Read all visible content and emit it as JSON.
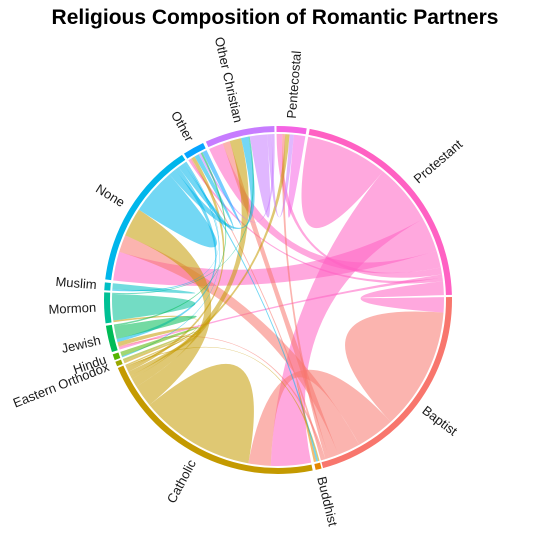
{
  "chart_data": {
    "type": "chord",
    "title": "Religious Composition of Romantic Partners",
    "groups": [
      {
        "name": "Baptist",
        "color": "#F8766D"
      },
      {
        "name": "Buddhist",
        "color": "#E58700"
      },
      {
        "name": "Catholic",
        "color": "#C49A00"
      },
      {
        "name": "Eastern Orthodox",
        "color": "#99A800"
      },
      {
        "name": "Hindu",
        "color": "#53B400"
      },
      {
        "name": "Jewish",
        "color": "#00BC56"
      },
      {
        "name": "Mormon",
        "color": "#00C094"
      },
      {
        "name": "Muslim",
        "color": "#00BFC4"
      },
      {
        "name": "None",
        "color": "#00B6EB"
      },
      {
        "name": "Other",
        "color": "#06A4FF"
      },
      {
        "name": "Other Christian",
        "color": "#C77CFF"
      },
      {
        "name": "Pentecostal",
        "color": "#F564E3"
      },
      {
        "name": "Protestant",
        "color": "#FF61C3"
      }
    ],
    "arc_degrees": [
      {
        "name": "Baptist",
        "start": 89,
        "end": 165
      },
      {
        "name": "Buddhist",
        "start": 165.5,
        "end": 167.5
      },
      {
        "name": "Catholic",
        "start": 168.5,
        "end": 247
      },
      {
        "name": "Eastern Orthodox",
        "start": 247.6,
        "end": 249.2
      },
      {
        "name": "Hindu",
        "start": 249.8,
        "end": 251.8
      },
      {
        "name": "Jewish",
        "start": 252.6,
        "end": 261.5
      },
      {
        "name": "Mormon",
        "start": 262.3,
        "end": 272.5
      },
      {
        "name": "Muslim",
        "start": 273.2,
        "end": 275.8
      },
      {
        "name": "None",
        "start": 276.8,
        "end": 326.5
      },
      {
        "name": "Other",
        "start": 327.3,
        "end": 334.5
      },
      {
        "name": "Other Christian",
        "start": 335.5,
        "end": 358.8
      },
      {
        "name": "Pentecostal",
        "start": 359.5,
        "end": 9.5
      },
      {
        "name": "Protestant",
        "start": 10.5,
        "end": 88.3
      }
    ],
    "links": [
      {
        "from": "Protestant",
        "to": "Protestant",
        "value": 12.0
      },
      {
        "from": "Protestant",
        "to": "Catholic",
        "value": 18.0
      },
      {
        "from": "Protestant",
        "to": "None",
        "value": 10.0
      },
      {
        "from": "Protestant",
        "to": "Other Christian",
        "value": 5.0
      },
      {
        "from": "Protestant",
        "to": "Pentecostal",
        "value": 2.0
      },
      {
        "from": "Protestant",
        "to": "Jewish",
        "value": 1.0
      },
      {
        "from": "Protestant",
        "to": "Other",
        "value": 1.0
      },
      {
        "from": "Protestant",
        "to": "Baptist",
        "value": 4.0
      },
      {
        "from": "Baptist",
        "to": "Baptist",
        "value": 16.0
      },
      {
        "from": "Baptist",
        "to": "Catholic",
        "value": 10.0
      },
      {
        "from": "Baptist",
        "to": "None",
        "value": 6.0
      },
      {
        "from": "Baptist",
        "to": "Other Christian",
        "value": 2.5
      },
      {
        "from": "Baptist",
        "to": "Pentecostal",
        "value": 1.0
      },
      {
        "from": "Baptist",
        "to": "Jewish",
        "value": 0.6
      },
      {
        "from": "Baptist",
        "to": "Other",
        "value": 0.6
      },
      {
        "from": "Catholic",
        "to": "Catholic",
        "value": 26.0
      },
      {
        "from": "Catholic",
        "to": "None",
        "value": 10.0
      },
      {
        "from": "Catholic",
        "to": "Other Christian",
        "value": 4.0
      },
      {
        "from": "Catholic",
        "to": "Pentecostal",
        "value": 1.5
      },
      {
        "from": "Catholic",
        "to": "Jewish",
        "value": 2.0
      },
      {
        "from": "Catholic",
        "to": "Other",
        "value": 1.5
      },
      {
        "from": "Catholic",
        "to": "Mormon",
        "value": 0.8
      },
      {
        "from": "Catholic",
        "to": "Buddhist",
        "value": 0.5
      },
      {
        "from": "Catholic",
        "to": "Eastern Orthodox",
        "value": 0.6
      },
      {
        "from": "None",
        "to": "None",
        "value": 8.0
      },
      {
        "from": "None",
        "to": "Other Christian",
        "value": 2.5
      },
      {
        "from": "None",
        "to": "Jewish",
        "value": 1.5
      },
      {
        "from": "None",
        "to": "Other",
        "value": 2.0
      },
      {
        "from": "None",
        "to": "Buddhist",
        "value": 0.6
      },
      {
        "from": "None",
        "to": "Hindu",
        "value": 0.4
      },
      {
        "from": "None",
        "to": "Muslim",
        "value": 0.3
      },
      {
        "from": "Mormon",
        "to": "Mormon",
        "value": 6.0
      },
      {
        "from": "Mormon",
        "to": "Other Christian",
        "value": 0.5
      },
      {
        "from": "Other Christian",
        "to": "Other Christian",
        "value": 3.0
      },
      {
        "from": "Other Christian",
        "to": "Pentecostal",
        "value": 1.5
      },
      {
        "from": "Other Christian",
        "to": "Other",
        "value": 1.0
      },
      {
        "from": "Pentecostal",
        "to": "Pentecostal",
        "value": 2.0
      },
      {
        "from": "Jewish",
        "to": "Jewish",
        "value": 3.0
      },
      {
        "from": "Jewish",
        "to": "Other",
        "value": 0.8
      },
      {
        "from": "Other",
        "to": "Other",
        "value": 1.0
      },
      {
        "from": "Muslim",
        "to": "Muslim",
        "value": 0.6
      },
      {
        "from": "Hindu",
        "to": "Hindu",
        "value": 0.8
      },
      {
        "from": "Buddhist",
        "to": "Buddhist",
        "value": 0.4
      },
      {
        "from": "Eastern Orthodox",
        "to": "Eastern Orthodox",
        "value": 0.3
      }
    ]
  }
}
